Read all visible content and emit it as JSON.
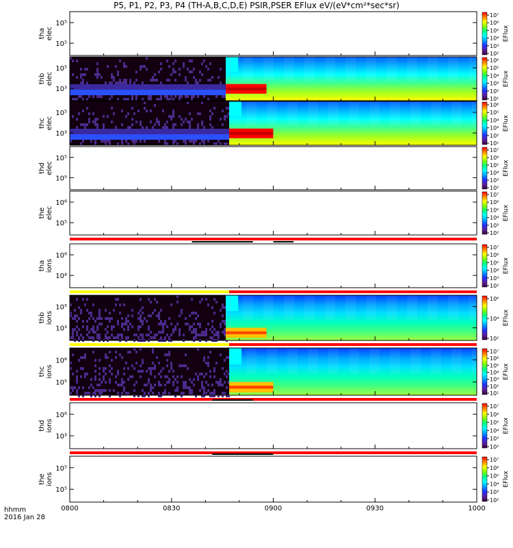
{
  "title": "P5, P1, P2, P3, P4 (TH-A,B,C,D,E) PSIR,PSER EFlux eV/(eV*cm²*sec*sr)",
  "footer": {
    "hhmm": "hhmm",
    "date": "2016 Jan 28"
  },
  "colorbar": {
    "label": "EFlux",
    "colors": [
      "#3a003a",
      "#5a1fa0",
      "#2030ff",
      "#00a0ff",
      "#00ffff",
      "#00ff80",
      "#80ff00",
      "#ffff00",
      "#ff8000",
      "#ff0000"
    ]
  },
  "chart_data": {
    "type": "heatmap",
    "x_range": [
      "0800",
      "1000"
    ],
    "x_ticks": [
      "0800",
      "0830",
      "0900",
      "0930",
      "1000"
    ],
    "panels": [
      {
        "id": "tha-elec",
        "label": [
          "tha",
          "elec"
        ],
        "yticks": [
          "10⁵",
          "10⁵"
        ],
        "cbar_ticks": [
          "10⁷",
          "10⁶",
          "10⁵",
          "10⁴",
          "10³",
          "10²"
        ],
        "data": "none"
      },
      {
        "id": "thb-elec",
        "label": [
          "thb",
          "elec"
        ],
        "yticks": [
          "10⁵",
          "10³"
        ],
        "cbar_ticks": [
          "10⁶",
          "10⁵",
          "10⁴",
          "10³",
          "10²",
          "10¹"
        ],
        "data": "spectrogram",
        "switch": "0846",
        "burst_end": "0858"
      },
      {
        "id": "thc-elec",
        "label": [
          "thc",
          "elec"
        ],
        "yticks": [
          "10⁵",
          "10³"
        ],
        "cbar_ticks": [
          "10⁶",
          "10⁵",
          "10⁴",
          "10³",
          "10²",
          "10¹"
        ],
        "data": "spectrogram",
        "switch": "0847",
        "burst_end": "0900"
      },
      {
        "id": "thd-elec",
        "label": [
          "thd",
          "elec"
        ],
        "yticks": [
          "10⁵",
          "10⁵"
        ],
        "cbar_ticks": [
          "10⁷",
          "10⁶",
          "10⁵",
          "10⁴",
          "10³",
          "10²"
        ],
        "data": "none"
      },
      {
        "id": "the-elec",
        "label": [
          "the",
          "elec"
        ],
        "yticks": [
          "10⁶",
          "10⁵"
        ],
        "cbar_ticks": [
          "10⁷",
          "10⁶",
          "10⁵",
          "10⁴",
          "10³",
          "10²"
        ],
        "data": "none"
      },
      {
        "id": "tha-ions",
        "label": [
          "tha",
          "ions"
        ],
        "yticks": [
          "10⁶",
          "10⁴"
        ],
        "cbar_ticks": [
          "10⁷",
          "10⁶",
          "10⁵",
          "10⁴",
          "10³",
          "10²"
        ],
        "data": "none"
      },
      {
        "id": "thb-ions",
        "label": [
          "thb",
          "ions"
        ],
        "yticks": [
          "10⁵",
          "10³"
        ],
        "cbar_ticks": [
          "10⁶",
          "10⁴",
          "10²"
        ],
        "data": "spectrogram",
        "switch": "0846",
        "burst_end": "0858"
      },
      {
        "id": "thc-ions",
        "label": [
          "thc",
          "ions"
        ],
        "yticks": [
          "10⁶",
          "10⁵"
        ],
        "cbar_ticks": [
          "10⁷",
          "10⁶",
          "10⁵",
          "10⁴",
          "10³",
          "10²",
          "10¹"
        ],
        "data": "spectrogram",
        "switch": "0847",
        "burst_end": "0900"
      },
      {
        "id": "thd-ions",
        "label": [
          "thd",
          "ions"
        ],
        "yticks": [
          "10⁶",
          "10³"
        ],
        "cbar_ticks": [
          "10⁷",
          "10⁶",
          "10⁵",
          "10⁴",
          "10³",
          "10²"
        ],
        "data": "none"
      },
      {
        "id": "the-ions",
        "label": [
          "the",
          "ions"
        ],
        "yticks": [
          "10⁵",
          "10⁵"
        ],
        "cbar_ticks": [
          "10⁷",
          "10⁶",
          "10⁵",
          "10⁴",
          "10³",
          "10²"
        ],
        "data": "none"
      }
    ]
  }
}
